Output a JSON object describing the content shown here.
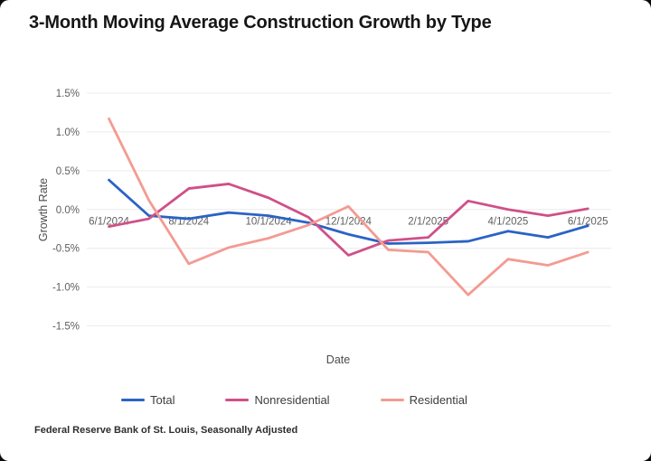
{
  "title": "3-Month Moving Average Construction Growth by Type",
  "footer": "Federal Reserve Bank of St. Louis, Seasonally Adjusted",
  "chart_data": {
    "type": "line",
    "title": "3-Month Moving Average Construction Growth by Type",
    "xlabel": "Date",
    "ylabel": "Growth Rate",
    "grid": true,
    "legend_position": "bottom",
    "ylim": [
      -1.5,
      1.5
    ],
    "y_ticks": [
      1.5,
      1.0,
      0.5,
      0.0,
      -0.5,
      -1.0,
      -1.5
    ],
    "y_tick_labels": [
      "1.5%",
      "1.0%",
      "0.5%",
      "0.0%",
      "-0.5%",
      "-1.0%",
      "-1.5%"
    ],
    "x_tick_labels": [
      "6/1/2024",
      "8/1/2024",
      "10/1/2024",
      "12/1/2024",
      "2/1/2025",
      "4/1/2025",
      "6/1/2025"
    ],
    "categories": [
      "6/1/2024",
      "7/1/2024",
      "8/1/2024",
      "9/1/2024",
      "10/1/2024",
      "11/1/2024",
      "12/1/2024",
      "1/1/2025",
      "2/1/2025",
      "3/1/2025",
      "4/1/2025",
      "5/1/2025",
      "6/1/2025"
    ],
    "series": [
      {
        "name": "Total",
        "color": "#2a63c5",
        "values": [
          0.38,
          -0.08,
          -0.12,
          -0.04,
          -0.08,
          -0.17,
          -0.32,
          -0.44,
          -0.43,
          -0.41,
          -0.28,
          -0.36,
          -0.21
        ]
      },
      {
        "name": "Nonresidential",
        "color": "#cf5088",
        "values": [
          -0.22,
          -0.12,
          0.27,
          0.33,
          0.15,
          -0.1,
          -0.59,
          -0.4,
          -0.36,
          0.11,
          0.0,
          -0.08,
          0.01
        ]
      },
      {
        "name": "Residential",
        "color": "#f39b92",
        "values": [
          1.17,
          0.12,
          -0.7,
          -0.49,
          -0.37,
          -0.2,
          0.04,
          -0.52,
          -0.55,
          -1.1,
          -0.64,
          -0.72,
          -0.55
        ]
      }
    ],
    "colors": {
      "gridline": "#ececec",
      "tick_text": "#5e5e5e",
      "axis_title_text": "#4c4c4c"
    }
  }
}
